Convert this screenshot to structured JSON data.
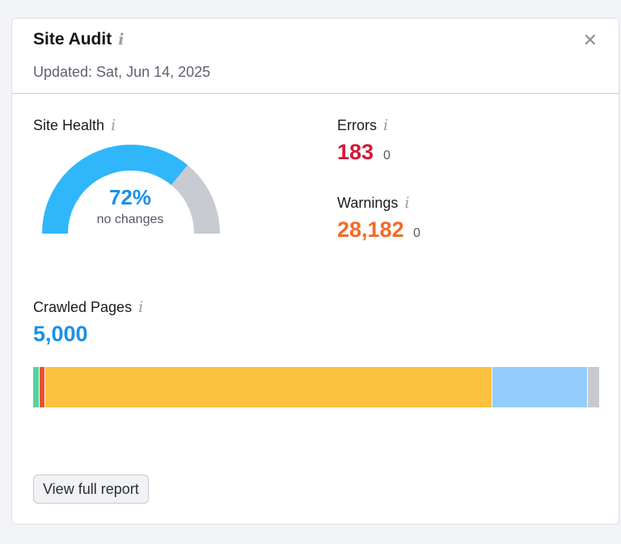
{
  "widget": {
    "title": "Site Audit",
    "updated": "Updated: Sat, Jun 14, 2025",
    "close_glyph": "✕"
  },
  "site_health": {
    "label": "Site Health",
    "percent": 72,
    "value_label": "72%",
    "change_label": "no changes",
    "color_filled": "#2fb6fb",
    "color_rest": "#c8cbd1"
  },
  "errors": {
    "label": "Errors",
    "value": "183",
    "delta": "0",
    "color": "#d01a39"
  },
  "warnings": {
    "label": "Warnings",
    "value": "28,182",
    "delta": "0",
    "color": "#f46a25"
  },
  "crawled_pages": {
    "label": "Crawled Pages",
    "value": "5,000",
    "segments": [
      {
        "color": "#59d1a0",
        "share": 0.011
      },
      {
        "color": "#e9532c",
        "share": 0.011
      },
      {
        "color": "#fcc13f",
        "share": 0.79
      },
      {
        "color": "#94cdfb",
        "share": 0.168
      },
      {
        "color": "#c6c9cf",
        "share": 0.02
      }
    ]
  },
  "icons": {
    "info": "i"
  },
  "actions": {
    "view_report": "View full report"
  }
}
